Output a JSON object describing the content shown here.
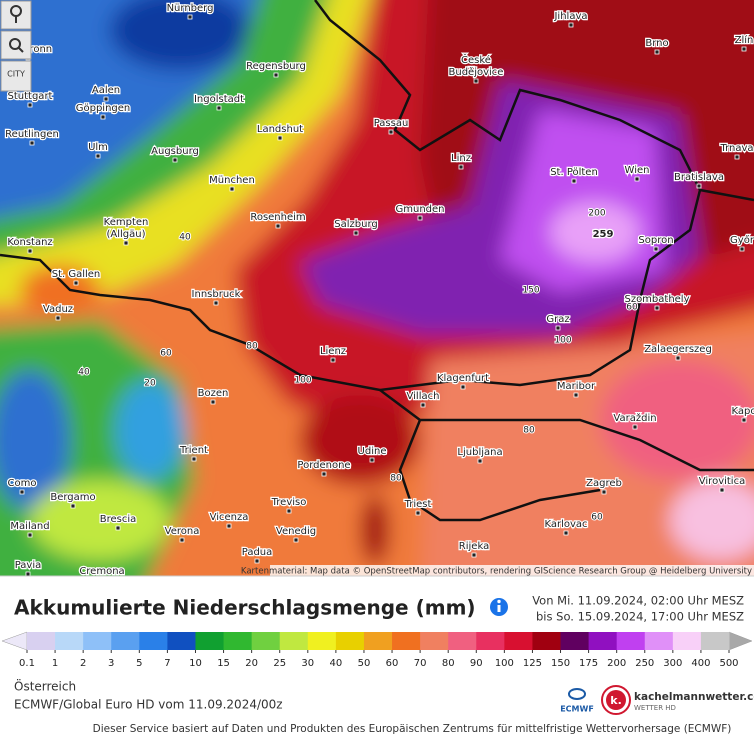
{
  "map": {
    "controls": {
      "city": "CITY"
    },
    "cities": [
      [
        "Nürnberg"
      ],
      [
        "Heilbronn"
      ],
      [
        "Aalen"
      ],
      [
        "Regensburg"
      ],
      [
        "Stuttgart"
      ],
      [
        "Göppingen"
      ],
      [
        "Ingolstadt"
      ],
      [
        "Reutlingen"
      ],
      [
        "Landshut"
      ],
      [
        "Passau"
      ],
      [
        "Ulm"
      ],
      [
        "Augsburg"
      ],
      [
        "Linz"
      ],
      [
        "München"
      ],
      [
        "Kempten",
        "(Allgäu)"
      ],
      [
        "Rosenheim"
      ],
      [
        "Gmunden"
      ],
      [
        "Salzburg"
      ],
      [
        "Konstanz"
      ],
      [
        "St. Gallen"
      ],
      [
        "Innsbruck"
      ],
      [
        "Vaduz"
      ],
      [
        "Lienz"
      ],
      [
        "Klagenfurt"
      ],
      [
        "Villach"
      ],
      [
        "Bozen"
      ],
      [
        "Trient"
      ],
      [
        "Udine"
      ],
      [
        "Pordenone"
      ],
      [
        "Ljubljana"
      ],
      [
        "Maribor"
      ],
      [
        "Graz"
      ],
      [
        "St. Pölten"
      ],
      [
        "Wien"
      ],
      [
        "Bratislava"
      ],
      [
        "Sopron"
      ],
      [
        "Szombathely"
      ],
      [
        "Zalaegerszeg"
      ],
      [
        "Varaždin"
      ],
      [
        "Zagreb"
      ],
      [
        "Karlovac"
      ],
      [
        "Rijeka"
      ],
      [
        "Triest"
      ],
      [
        "Venedig"
      ],
      [
        "Treviso"
      ],
      [
        "Vicenza"
      ],
      [
        "Padua"
      ],
      [
        "Verona"
      ],
      [
        "Brescia"
      ],
      [
        "Bergamo"
      ],
      [
        "Mailand"
      ],
      [
        "Como"
      ],
      [
        "Pavia"
      ],
      [
        "Cremona"
      ],
      [
        "Jihlava"
      ],
      [
        "České",
        "Budějovice"
      ],
      [
        "Brno"
      ],
      [
        "Zlín"
      ],
      [
        "Trnava"
      ],
      [
        "Győr"
      ],
      [
        "Virovitica"
      ],
      [
        "Kapo"
      ]
    ],
    "contours": [
      "40",
      "60",
      "80",
      "20",
      "40",
      "100",
      "80",
      "80",
      "60",
      "150",
      "100",
      "200",
      "60"
    ],
    "maximum": "259",
    "attribution": "Kartenmaterial: Map data © OpenStreetMap contributors, rendering GIScience Research Group @ Heidelberg University"
  },
  "header": {
    "title": "Akkumulierte Niederschlagsmenge (mm)",
    "period_from": "Von Mi. 11.09.2024, 02:00 Uhr MESZ",
    "period_to": "bis So. 15.09.2024, 17:00 Uhr MESZ"
  },
  "legend": {
    "labels": [
      0.1,
      1,
      2,
      3,
      5,
      7,
      10,
      15,
      20,
      25,
      30,
      40,
      50,
      60,
      70,
      80,
      90,
      100,
      125,
      150,
      175,
      200,
      250,
      300,
      400,
      500
    ],
    "colors": [
      "#d8d0f0",
      "#b8d8f8",
      "#8ec0f8",
      "#5aa0f0",
      "#2a80e8",
      "#1050c0",
      "#10a030",
      "#30b830",
      "#70d040",
      "#c0e840",
      "#f0f020",
      "#e8d000",
      "#f0a020",
      "#f07020",
      "#f08060",
      "#f06080",
      "#e83060",
      "#d81030",
      "#a00010",
      "#600060",
      "#9010c0",
      "#c040f0",
      "#e090f8",
      "#f8d0f8",
      "#c8c8c8"
    ],
    "under_color": "#ece8f8",
    "over_color": "#a8a8a8"
  },
  "footer": {
    "region": "Österreich",
    "model": "ECMWF/Global Euro HD vom 11.09.2024/00z",
    "ecmwf_logo": "ECMWF",
    "brand": "kachelmannwetter.com",
    "brand_sub": "WETTER HD",
    "brand_mark": "k.",
    "disclaimer": "Dieser Service basiert auf Daten und Produkten des Europäischen Zentrums für mittelfristige Wettervorhersage (ECMWF)"
  }
}
